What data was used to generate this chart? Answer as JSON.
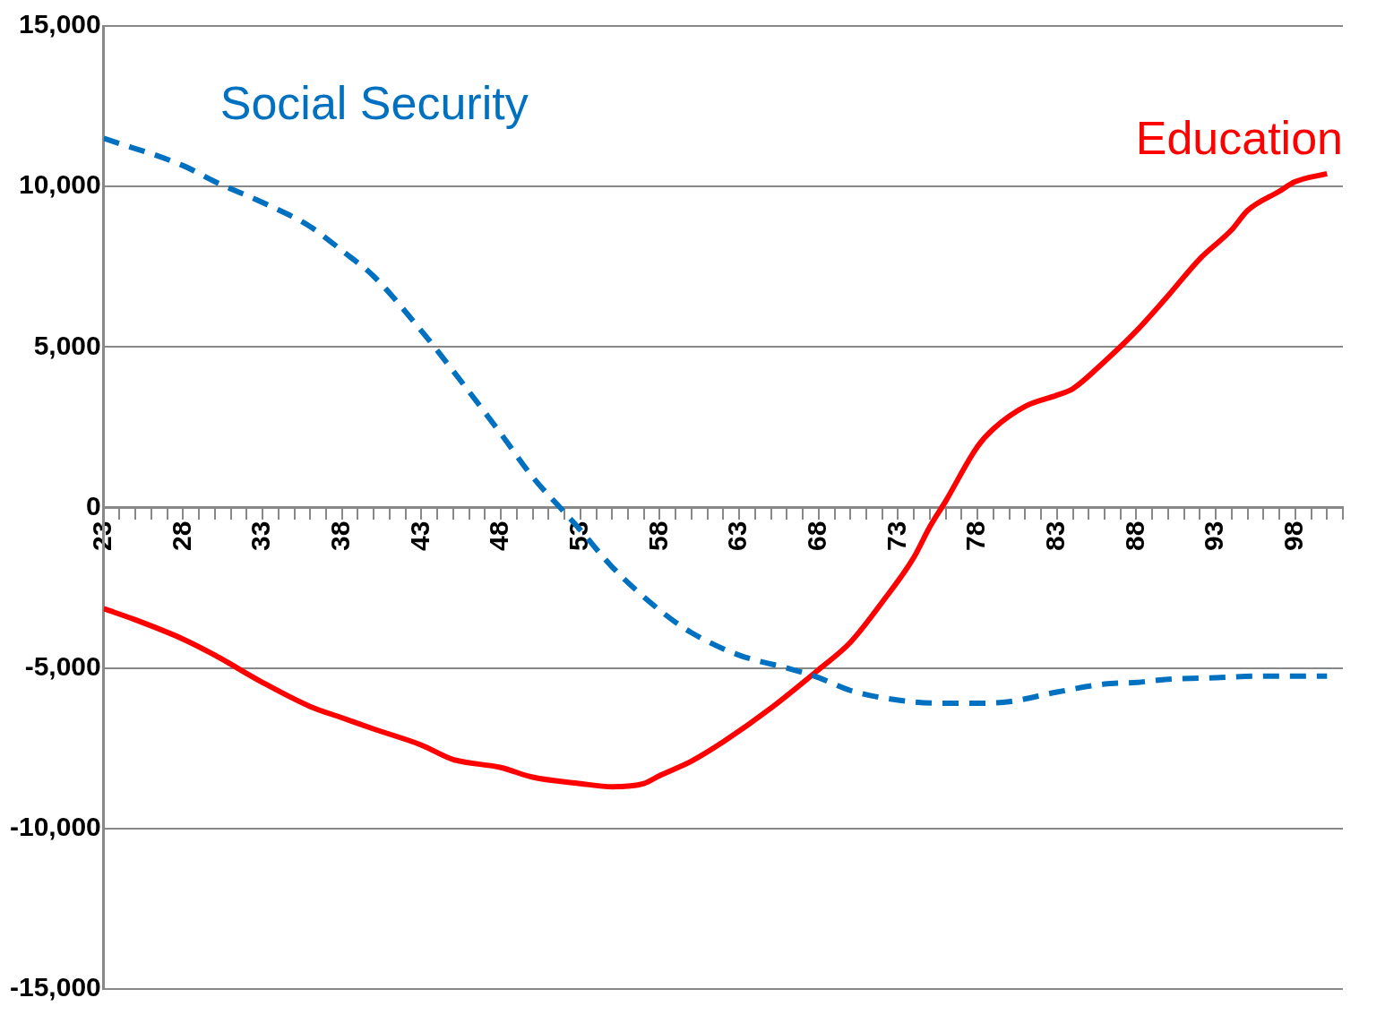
{
  "chart_data": {
    "type": "line",
    "legend": false,
    "grid": "y",
    "marker": "none",
    "xlim": [
      23,
      101
    ],
    "xticks": [
      23,
      {
        "value": 24,
        "label": null
      },
      {
        "value": 25,
        "label": null
      },
      {
        "value": 26,
        "label": null
      },
      {
        "value": 27,
        "label": null
      },
      28,
      {
        "value": 29,
        "label": null
      },
      {
        "value": 30,
        "label": null
      },
      {
        "value": 31,
        "label": null
      },
      {
        "value": 32,
        "label": null
      },
      33,
      {
        "value": 34,
        "label": null
      },
      {
        "value": 35,
        "label": null
      },
      {
        "value": 36,
        "label": null
      },
      {
        "value": 37,
        "label": null
      },
      38,
      {
        "value": 39,
        "label": null
      },
      {
        "value": 40,
        "label": null
      },
      {
        "value": 41,
        "label": null
      },
      {
        "value": 42,
        "label": null
      },
      43,
      {
        "value": 44,
        "label": null
      },
      {
        "value": 45,
        "label": null
      },
      {
        "value": 46,
        "label": null
      },
      {
        "value": 47,
        "label": null
      },
      48,
      {
        "value": 49,
        "label": null
      },
      {
        "value": 50,
        "label": null
      },
      {
        "value": 51,
        "label": null
      },
      {
        "value": 52,
        "label": null
      },
      53,
      {
        "value": 54,
        "label": null
      },
      {
        "value": 55,
        "label": null
      },
      {
        "value": 56,
        "label": null
      },
      {
        "value": 57,
        "label": null
      },
      58,
      {
        "value": 59,
        "label": null
      },
      {
        "value": 60,
        "label": null
      },
      {
        "value": 61,
        "label": null
      },
      {
        "value": 62,
        "label": null
      },
      63,
      {
        "value": 64,
        "label": null
      },
      {
        "value": 65,
        "label": null
      },
      {
        "value": 66,
        "label": null
      },
      {
        "value": 67,
        "label": null
      },
      68,
      {
        "value": 69,
        "label": null
      },
      {
        "value": 70,
        "label": null
      },
      {
        "value": 71,
        "label": null
      },
      {
        "value": 72,
        "label": null
      },
      73,
      {
        "value": 74,
        "label": null
      },
      {
        "value": 75,
        "label": null
      },
      {
        "value": 76,
        "label": null
      },
      {
        "value": 77,
        "label": null
      },
      78,
      {
        "value": 79,
        "label": null
      },
      {
        "value": 80,
        "label": null
      },
      {
        "value": 81,
        "label": null
      },
      {
        "value": 82,
        "label": null
      },
      83,
      {
        "value": 84,
        "label": null
      },
      {
        "value": 85,
        "label": null
      },
      {
        "value": 86,
        "label": null
      },
      {
        "value": 87,
        "label": null
      },
      88,
      {
        "value": 89,
        "label": null
      },
      {
        "value": 90,
        "label": null
      },
      {
        "value": 91,
        "label": null
      },
      {
        "value": 92,
        "label": null
      },
      93,
      {
        "value": 94,
        "label": null
      },
      {
        "value": 95,
        "label": null
      },
      {
        "value": 96,
        "label": null
      },
      {
        "value": 97,
        "label": null
      },
      98,
      {
        "value": 99,
        "label": null
      },
      {
        "value": 100,
        "label": null
      },
      {
        "value": 101,
        "label": null
      }
    ],
    "ylim": [
      -15000,
      15000
    ],
    "yticks": [
      {
        "value": -15000,
        "label": "-15,000"
      },
      {
        "value": -10000,
        "label": "-10,000"
      },
      {
        "value": -5000,
        "label": "-5,000"
      },
      0,
      {
        "value": 5000,
        "label": "5,000"
      },
      {
        "value": 10000,
        "label": "10,000"
      },
      {
        "value": 15000,
        "label": "15,000"
      }
    ],
    "series": [
      {
        "name": "Social Security",
        "color": "#0070c0",
        "line_style": "dashed",
        "x": [
          23,
          28,
          30,
          33,
          36,
          38,
          40,
          43,
          45,
          48,
          50,
          52,
          53,
          55,
          58,
          60,
          63,
          66,
          68,
          70,
          73,
          76,
          78,
          80,
          83,
          86,
          88,
          90,
          93,
          96,
          100
        ],
        "values": [
          11500,
          10650,
          10150,
          9500,
          8750,
          8000,
          7200,
          5500,
          4250,
          2300,
          950,
          -150,
          -700,
          -1850,
          -3200,
          -3900,
          -4600,
          -5000,
          -5300,
          -5700,
          -6000,
          -6100,
          -6100,
          -6050,
          -5750,
          -5500,
          -5450,
          -5350,
          -5300,
          -5250,
          -5250
        ]
      },
      {
        "name": "Education",
        "color": "#ff0000",
        "line_style": "solid",
        "x": [
          23,
          25,
          28,
          30,
          33,
          36,
          38,
          40,
          43,
          45,
          48,
          50,
          53,
          55,
          57,
          58,
          60,
          62,
          65,
          68,
          70,
          72,
          74,
          75,
          76,
          78,
          79,
          81,
          83,
          84,
          86,
          88,
          90,
          92,
          94,
          95,
          97,
          98,
          100
        ],
        "values": [
          -3150,
          -3500,
          -4100,
          -4600,
          -5450,
          -6200,
          -6550,
          -6900,
          -7400,
          -7850,
          -8100,
          -8400,
          -8600,
          -8700,
          -8600,
          -8350,
          -7900,
          -7300,
          -6250,
          -5050,
          -4200,
          -2950,
          -1550,
          -600,
          200,
          1900,
          2450,
          3150,
          3500,
          3700,
          4550,
          5500,
          6600,
          7750,
          8650,
          9250,
          9850,
          10150,
          10400
        ]
      }
    ]
  }
}
